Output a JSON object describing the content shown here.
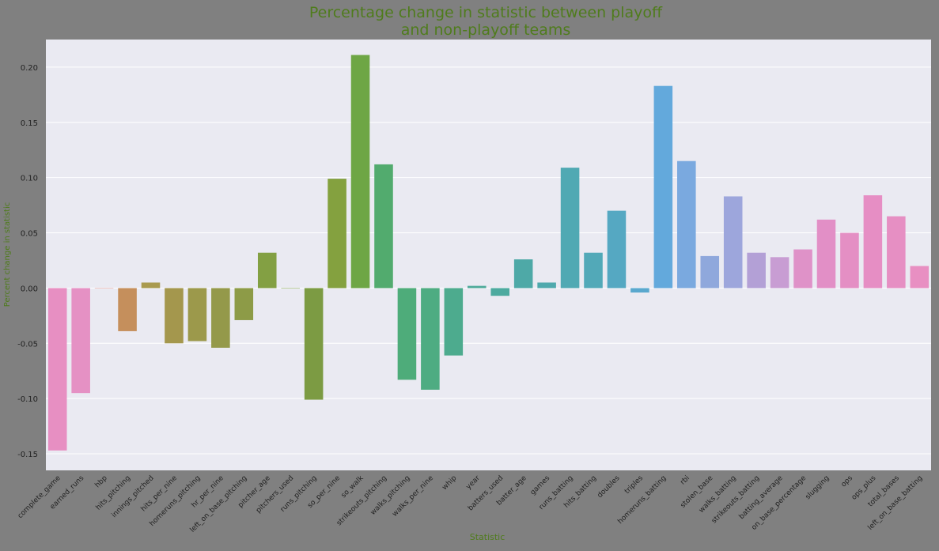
{
  "chart_data": {
    "type": "bar",
    "title_lines": [
      "Percentage change in statistic between playoff",
      "and non-playoff teams"
    ],
    "xlabel": "Statistic",
    "ylabel": "Percent change in statistic",
    "ylim": [
      -0.165,
      0.225
    ],
    "yticks": [
      -0.15,
      -0.1,
      -0.05,
      0.0,
      0.05,
      0.1,
      0.15,
      0.2
    ],
    "ytick_labels": [
      "-0.15",
      "-0.10",
      "-0.05",
      "0.00",
      "0.05",
      "0.10",
      "0.15",
      "0.20"
    ],
    "grid": true,
    "colors": {
      "background": "#808080",
      "plot_area": "#eaeaf2",
      "grid": "#ffffff",
      "title": "#4f7c1c",
      "text": "#222222"
    },
    "categories": [
      "complete_game",
      "earned_runs",
      "hbp",
      "hits_pitching",
      "innings_pitched",
      "hits_per_nine",
      "homeruns_pitching",
      "hr_per_nine",
      "left_on_base_pitching",
      "pitcher_age",
      "pitchers_used",
      "runs_pitching",
      "so_per_nine",
      "so_walk",
      "strikeouts_pitching",
      "walks_pitching",
      "walks_per_nine",
      "whip",
      "year",
      "batters_used",
      "batter_age",
      "games",
      "runs_batting",
      "hits_batting",
      "doubles",
      "triples",
      "homeruns_batting",
      "rbi",
      "stolen_base",
      "walks_batting",
      "strikeouts_batting",
      "batting_average",
      "on_base_percentage",
      "slugging",
      "ops",
      "ops_plus",
      "total_bases",
      "left_on_base_batting"
    ],
    "values": [
      -0.147,
      -0.095,
      0.0,
      -0.039,
      0.005,
      -0.05,
      -0.048,
      -0.054,
      -0.029,
      0.032,
      0.0,
      -0.101,
      0.099,
      0.211,
      0.112,
      -0.083,
      -0.092,
      -0.061,
      0.002,
      -0.007,
      0.026,
      0.005,
      0.109,
      0.032,
      0.07,
      -0.004,
      0.183,
      0.115,
      0.029,
      0.083,
      0.032,
      0.028,
      0.035,
      0.062,
      0.05,
      0.084,
      0.065,
      0.02
    ],
    "bar_colors": [
      "#e78fc2",
      "#e591c4",
      "#e39a8f",
      "#c58f5c",
      "#a99a4e",
      "#a4974d",
      "#9c994b",
      "#94994a",
      "#8d9b47",
      "#83a043",
      "#7da045",
      "#7c9b43",
      "#84a13f",
      "#6ea645",
      "#52ab6e",
      "#4eac7a",
      "#4eac82",
      "#4dab8e",
      "#4daa99",
      "#4daa9f",
      "#4ea9a7",
      "#4fa9ad",
      "#50a9b3",
      "#52a9b8",
      "#55a8c2",
      "#5aa8ce",
      "#63a9dc",
      "#7aa9df",
      "#8fa8dc",
      "#9da6dc",
      "#b3a0d6",
      "#c89dd3",
      "#df92c8",
      "#e28fc6",
      "#e48fc4",
      "#e68ec4",
      "#e68fc3",
      "#e88fc2"
    ]
  }
}
